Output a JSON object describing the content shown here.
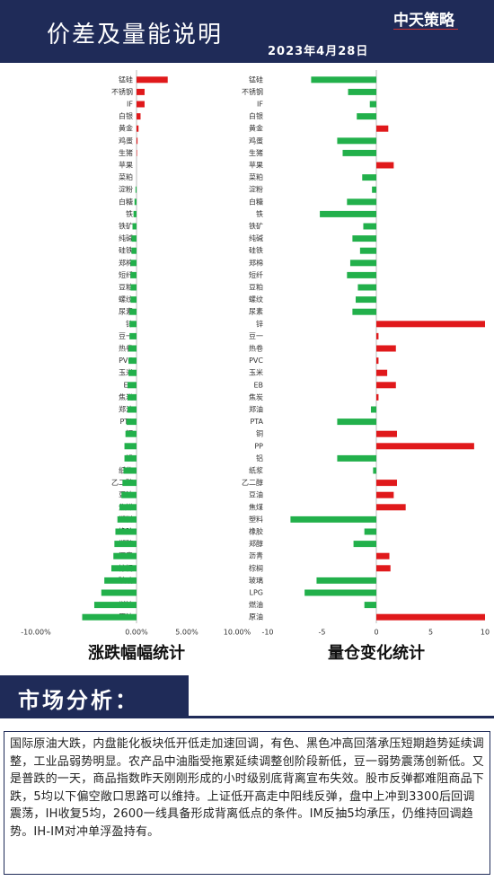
{
  "header": {
    "title": "价差及量能说明",
    "date": "2023年4月28日",
    "logo": "中天策略"
  },
  "chart_data": [
    {
      "type": "hbar",
      "title": "涨跌幅幅统计",
      "categories": [
        "锰硅",
        "不锈钢",
        "IF",
        "白银",
        "黄金",
        "鸡蛋",
        "生猪",
        "苹果",
        "菜粕",
        "淀粉",
        "白糖",
        "铁",
        "铁矿",
        "纯碱",
        "硅铁",
        "郑棉",
        "短纤",
        "豆粕",
        "螺纹",
        "尿素",
        "锌",
        "豆一",
        "热卷",
        "PVC",
        "玉米",
        "EB",
        "焦炭",
        "郑油",
        "PTA",
        "铜",
        "PP",
        "铝",
        "纸浆",
        "乙二醇",
        "豆油",
        "焦煤",
        "塑料",
        "橡胶",
        "郑醇",
        "沥青",
        "棕榈",
        "玻璃",
        "LPG",
        "燃油",
        "原油"
      ],
      "values": [
        3.1,
        0.8,
        0.8,
        0.4,
        0.2,
        0.1,
        0.05,
        0,
        0,
        -0.1,
        -0.2,
        -0.3,
        -0.4,
        -0.5,
        -0.5,
        -0.6,
        -0.6,
        -0.6,
        -0.6,
        -0.7,
        -0.7,
        -0.7,
        -0.8,
        -0.8,
        -0.8,
        -0.9,
        -0.9,
        -0.9,
        -1.0,
        -1.1,
        -1.2,
        -1.2,
        -1.3,
        -1.4,
        -1.5,
        -1.7,
        -1.9,
        -2.1,
        -2.2,
        -2.3,
        -2.5,
        -3.2,
        -3.5,
        -4.2,
        -5.4
      ],
      "positive_color": "#e0191b",
      "negative_color": "#22b04b",
      "xlim": [
        -10,
        10
      ],
      "xticks": [
        {
          "value": -10,
          "label": "-10.00%"
        },
        {
          "value": 0,
          "label": "0.00%"
        },
        {
          "value": 5,
          "label": "5.00%"
        },
        {
          "value": 10,
          "label": "10.00%"
        }
      ]
    },
    {
      "type": "hbar",
      "title": "量仓变化统计",
      "categories": [
        "锰硅",
        "不锈钢",
        "IF",
        "白银",
        "黄金",
        "鸡蛋",
        "生猪",
        "苹果",
        "菜粕",
        "淀粉",
        "白糖",
        "铁",
        "铁矿",
        "纯碱",
        "硅铁",
        "郑棉",
        "短纤",
        "豆粕",
        "螺纹",
        "尿素",
        "锌",
        "豆一",
        "热卷",
        "PVC",
        "玉米",
        "EB",
        "焦炭",
        "郑油",
        "PTA",
        "铜",
        "PP",
        "铝",
        "纸浆",
        "乙二醇",
        "豆油",
        "焦煤",
        "塑料",
        "橡胶",
        "郑醇",
        "沥青",
        "棕榈",
        "玻璃",
        "LPG",
        "燃油",
        "原油"
      ],
      "values": [
        -6.0,
        -2.6,
        -0.6,
        -1.8,
        1.1,
        -3.6,
        -3.1,
        1.6,
        -1.3,
        -0.4,
        -2.7,
        -5.2,
        -1.2,
        -2.2,
        -1.5,
        -2.4,
        -2.7,
        -1.7,
        -1.9,
        -2.2,
        10,
        0.2,
        1.8,
        0.2,
        1.0,
        1.8,
        0.2,
        -0.5,
        -3.6,
        1.9,
        9.0,
        -3.6,
        -0.3,
        1.9,
        1.6,
        2.7,
        -7.9,
        -1.1,
        -2.1,
        1.2,
        1.3,
        -5.5,
        -6.6,
        -1.1,
        10
      ],
      "positive_color": "#e0191b",
      "negative_color": "#22b04b",
      "xlim": [
        -10,
        10
      ],
      "xticks": [
        -10,
        -5,
        0,
        5,
        10
      ]
    }
  ],
  "analysis": {
    "title": "市场分析：",
    "text": "国际原油大跌，内盘能化板块低开低走加速回调，有色、黑色冲高回落承压短期趋势延续调整，工业品弱势明显。农产品中油脂受拖累延续调整创阶段新低，豆一弱势震荡创新低。又是普跌的一天，商品指数昨天刚刚形成的小时级别底背离宣布失效。股市反弹都难阻商品下跌，5均以下偏空敞口思路可以维持。上证低开高走中阳线反弹，盘中上冲到3300后回调震荡，IH收复5均，2600一线具备形成背离低点的条件。IM反抽5均承压，仍维持回调趋势。IH-IM对冲单浮盈持有。"
  }
}
